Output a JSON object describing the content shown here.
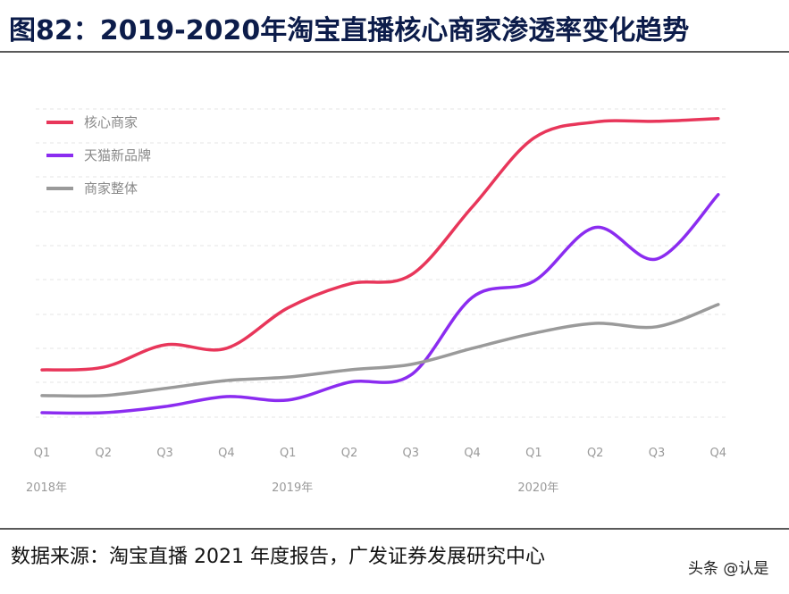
{
  "chart_data": {
    "type": "line",
    "title": "图82：2019-2020年淘宝直播核心商家渗透率变化趋势",
    "categories": [
      "Q1",
      "Q2",
      "Q3",
      "Q4",
      "Q1",
      "Q2",
      "Q3",
      "Q4",
      "Q1",
      "Q2",
      "Q3",
      "Q4"
    ],
    "year_labels": [
      "2018年",
      "2019年",
      "2020年"
    ],
    "series": [
      {
        "name": "核心商家",
        "color": "#e8365a",
        "values": [
          13.8,
          14.6,
          21.1,
          20.1,
          31.9,
          38.9,
          41.5,
          61.4,
          81.5,
          86.2,
          86.4,
          87.2
        ]
      },
      {
        "name": "天猫新品牌",
        "color": "#8b2cf0",
        "values": [
          1.3,
          1.3,
          3.1,
          6.0,
          5.0,
          10.2,
          12.3,
          35.0,
          39.7,
          55.4,
          46.2,
          65.0
        ]
      },
      {
        "name": "商家整体",
        "color": "#9a9a9a",
        "values": [
          6.3,
          6.3,
          8.4,
          10.7,
          11.7,
          13.8,
          15.4,
          20.1,
          24.5,
          27.4,
          26.4,
          32.9
        ]
      }
    ],
    "ylim": [
      0,
      90
    ],
    "source": "数据来源：淘宝直播 2021 年度报告，广发证券发展研究中心",
    "watermark": "头条 @认是"
  }
}
